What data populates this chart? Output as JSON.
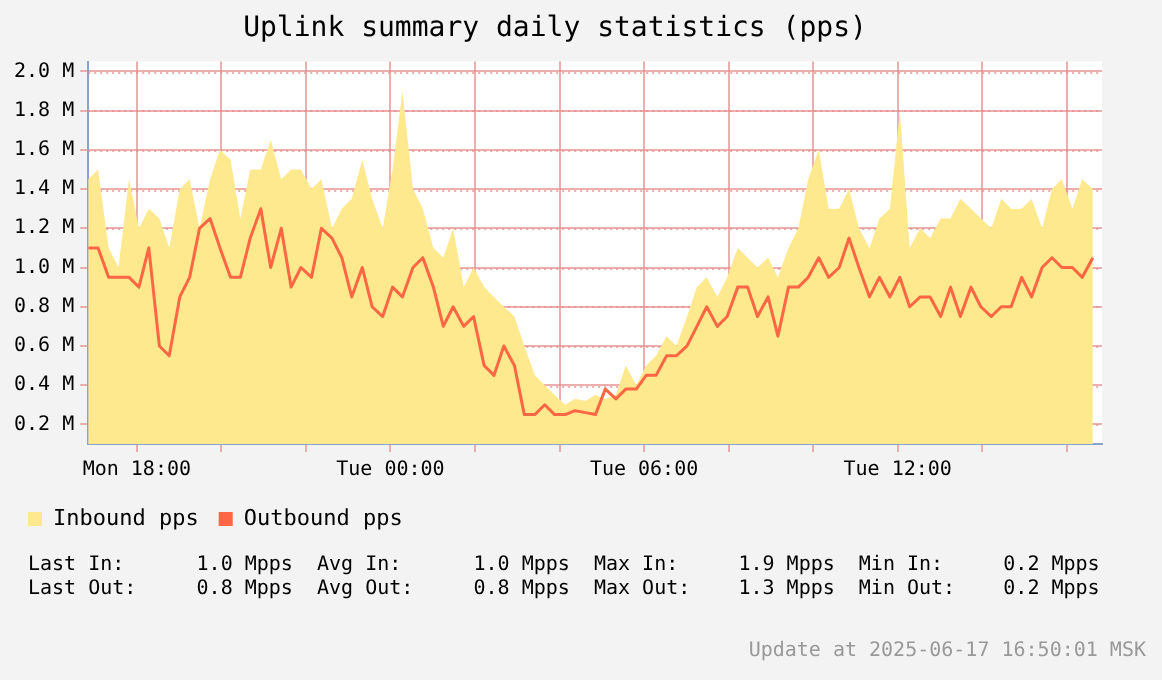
{
  "chart_data": {
    "type": "area",
    "title": "Uplink summary daily statistics (pps)",
    "x": [
      "2025-06-16T16:51",
      "2025-06-16T17:05",
      "2025-06-16T17:20",
      "2025-06-16T17:34",
      "2025-06-16T17:49",
      "2025-06-16T18:03",
      "2025-06-16T18:17",
      "2025-06-16T18:32",
      "2025-06-16T18:46",
      "2025-06-16T19:01",
      "2025-06-16T19:15",
      "2025-06-16T19:29",
      "2025-06-16T19:44",
      "2025-06-16T19:58",
      "2025-06-16T20:13",
      "2025-06-16T20:27",
      "2025-06-16T20:41",
      "2025-06-16T20:56",
      "2025-06-16T21:10",
      "2025-06-16T21:25",
      "2025-06-16T21:39",
      "2025-06-16T21:53",
      "2025-06-16T22:08",
      "2025-06-16T22:22",
      "2025-06-16T22:37",
      "2025-06-16T22:51",
      "2025-06-16T23:05",
      "2025-06-16T23:20",
      "2025-06-16T23:34",
      "2025-06-16T23:49",
      "2025-06-17T00:03",
      "2025-06-17T00:17",
      "2025-06-17T00:32",
      "2025-06-17T00:46",
      "2025-06-17T01:01",
      "2025-06-17T01:15",
      "2025-06-17T01:29",
      "2025-06-17T01:44",
      "2025-06-17T01:58",
      "2025-06-17T02:13",
      "2025-06-17T02:27",
      "2025-06-17T02:41",
      "2025-06-17T02:56",
      "2025-06-17T03:10",
      "2025-06-17T03:25",
      "2025-06-17T03:39",
      "2025-06-17T03:53",
      "2025-06-17T04:08",
      "2025-06-17T04:22",
      "2025-06-17T04:37",
      "2025-06-17T04:51",
      "2025-06-17T05:05",
      "2025-06-17T05:20",
      "2025-06-17T05:34",
      "2025-06-17T05:49",
      "2025-06-17T06:03",
      "2025-06-17T06:17",
      "2025-06-17T06:32",
      "2025-06-17T06:46",
      "2025-06-17T07:01",
      "2025-06-17T07:15",
      "2025-06-17T07:29",
      "2025-06-17T07:44",
      "2025-06-17T07:58",
      "2025-06-17T08:13",
      "2025-06-17T08:27",
      "2025-06-17T08:41",
      "2025-06-17T08:56",
      "2025-06-17T09:10",
      "2025-06-17T09:25",
      "2025-06-17T09:39",
      "2025-06-17T09:53",
      "2025-06-17T10:08",
      "2025-06-17T10:22",
      "2025-06-17T10:37",
      "2025-06-17T10:51",
      "2025-06-17T11:05",
      "2025-06-17T11:20",
      "2025-06-17T11:34",
      "2025-06-17T11:49",
      "2025-06-17T12:03",
      "2025-06-17T12:17",
      "2025-06-17T12:32",
      "2025-06-17T12:46",
      "2025-06-17T13:01",
      "2025-06-17T13:15",
      "2025-06-17T13:29",
      "2025-06-17T13:44",
      "2025-06-17T13:58",
      "2025-06-17T14:13",
      "2025-06-17T14:27",
      "2025-06-17T14:41",
      "2025-06-17T14:56",
      "2025-06-17T15:10",
      "2025-06-17T15:25",
      "2025-06-17T15:39",
      "2025-06-17T15:53",
      "2025-06-17T16:08",
      "2025-06-17T16:22",
      "2025-06-17T16:37"
    ],
    "series": [
      {
        "name": "Inbound pps",
        "color": "#ffe98f",
        "values": [
          1.45,
          1.5,
          1.1,
          1.0,
          1.45,
          1.2,
          1.3,
          1.25,
          1.1,
          1.4,
          1.45,
          1.2,
          1.45,
          1.6,
          1.55,
          1.25,
          1.5,
          1.5,
          1.65,
          1.45,
          1.5,
          1.5,
          1.4,
          1.45,
          1.2,
          1.3,
          1.35,
          1.55,
          1.35,
          1.2,
          1.5,
          1.9,
          1.4,
          1.3,
          1.1,
          1.05,
          1.2,
          0.9,
          1.0,
          0.9,
          0.85,
          0.8,
          0.75,
          0.6,
          0.45,
          0.4,
          0.35,
          0.3,
          0.33,
          0.32,
          0.35,
          0.33,
          0.35,
          0.5,
          0.4,
          0.5,
          0.55,
          0.65,
          0.6,
          0.75,
          0.9,
          0.95,
          0.85,
          0.95,
          1.1,
          1.05,
          1.0,
          1.05,
          0.95,
          1.1,
          1.2,
          1.45,
          1.6,
          1.3,
          1.3,
          1.4,
          1.2,
          1.1,
          1.25,
          1.3,
          1.8,
          1.1,
          1.2,
          1.15,
          1.25,
          1.25,
          1.35,
          1.3,
          1.25,
          1.2,
          1.35,
          1.3,
          1.3,
          1.35,
          1.2,
          1.4,
          1.45,
          1.3,
          1.45,
          1.4
        ]
      },
      {
        "name": "Outbound pps",
        "type": "line",
        "color": "#ff6644",
        "values": [
          1.1,
          1.1,
          0.95,
          0.95,
          0.95,
          0.9,
          1.1,
          0.6,
          0.55,
          0.85,
          0.95,
          1.2,
          1.25,
          1.1,
          0.95,
          0.95,
          1.15,
          1.3,
          1.0,
          1.2,
          0.9,
          1.0,
          0.95,
          1.2,
          1.15,
          1.05,
          0.85,
          1.0,
          0.8,
          0.75,
          0.9,
          0.85,
          1.0,
          1.05,
          0.9,
          0.7,
          0.8,
          0.7,
          0.75,
          0.5,
          0.45,
          0.6,
          0.5,
          0.25,
          0.25,
          0.3,
          0.25,
          0.25,
          0.27,
          0.26,
          0.25,
          0.38,
          0.33,
          0.38,
          0.38,
          0.45,
          0.45,
          0.55,
          0.55,
          0.6,
          0.7,
          0.8,
          0.7,
          0.75,
          0.9,
          0.9,
          0.75,
          0.85,
          0.65,
          0.9,
          0.9,
          0.95,
          1.05,
          0.95,
          1.0,
          1.15,
          1.0,
          0.85,
          0.95,
          0.85,
          0.95,
          0.8,
          0.85,
          0.85,
          0.75,
          0.9,
          0.75,
          0.9,
          0.8,
          0.75,
          0.8,
          0.8,
          0.95,
          0.85,
          1.0,
          1.05,
          1.0,
          1.0,
          0.95,
          1.05
        ]
      }
    ],
    "xlim": [
      "2025-06-16T16:51",
      "2025-06-17T16:50"
    ],
    "xticks": [
      {
        "value": "2025-06-16T18:00",
        "label": "Mon 18:00"
      },
      {
        "value": "2025-06-16T20:00",
        "label": null
      },
      {
        "value": "2025-06-16T22:00",
        "label": null
      },
      {
        "value": "2025-06-17T00:00",
        "label": "Tue 00:00"
      },
      {
        "value": "2025-06-17T02:00",
        "label": null
      },
      {
        "value": "2025-06-17T04:00",
        "label": null
      },
      {
        "value": "2025-06-17T06:00",
        "label": "Tue 06:00"
      },
      {
        "value": "2025-06-17T08:00",
        "label": null
      },
      {
        "value": "2025-06-17T10:00",
        "label": null
      },
      {
        "value": "2025-06-17T12:00",
        "label": "Tue 12:00"
      },
      {
        "value": "2025-06-17T14:00",
        "label": null
      },
      {
        "value": "2025-06-17T16:00",
        "label": null
      }
    ],
    "ylim": [
      0.1,
      2.05
    ],
    "yticks": [
      {
        "value": 0.2,
        "label": "0.2 M"
      },
      {
        "value": 0.4,
        "label": "0.4 M"
      },
      {
        "value": 0.6,
        "label": "0.6 M"
      },
      {
        "value": 0.8,
        "label": "0.8 M"
      },
      {
        "value": 1.0,
        "label": "1.0 M"
      },
      {
        "value": 1.2,
        "label": "1.2 M"
      },
      {
        "value": 1.4,
        "label": "1.4 M"
      },
      {
        "value": 1.6,
        "label": "1.6 M"
      },
      {
        "value": 1.8,
        "label": "1.8 M"
      },
      {
        "value": 2.0,
        "label": "2.0 M"
      }
    ],
    "grid": true,
    "legend": "bottom left",
    "marker": "none",
    "annotations": [
      "Last In:      1.0 Mpps  Avg In:      1.0 Mpps  Max In:     1.9 Mpps  Min In:     0.2 Mpps",
      "Last Out:     0.8 Mpps  Avg Out:     0.8 Mpps  Max Out:    1.3 Mpps  Min Out:    0.2 Mpps",
      "Update at 2025-06-17 16:50:01 MSK"
    ]
  }
}
